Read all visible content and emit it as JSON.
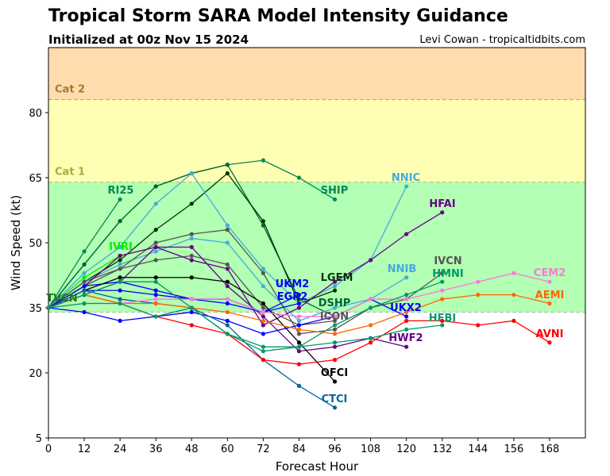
{
  "chart_data": {
    "type": "line",
    "title": "Tropical Storm SARA Model Intensity Guidance",
    "subtitle": "Initialized at 00z Nov 15 2024",
    "credit": "Levi Cowan - tropicaltidbits.com",
    "xlabel": "Forecast Hour",
    "ylabel": "Wind Speed (kt)",
    "xlim": [
      0,
      180
    ],
    "ylim": [
      5,
      95
    ],
    "xticks": [
      0,
      12,
      24,
      36,
      48,
      60,
      72,
      84,
      96,
      108,
      120,
      132,
      144,
      156,
      168
    ],
    "yticks": [
      5,
      20,
      35,
      50,
      65,
      80
    ],
    "grid": false,
    "bands": [
      {
        "label": "",
        "from": 5,
        "to": 34,
        "color": "#ffffff"
      },
      {
        "label": "",
        "from": 34,
        "to": 64,
        "color": "#b3ffb3"
      },
      {
        "label": "Cat 1",
        "from": 64,
        "to": 83,
        "color": "#ffffb3",
        "labelColor": "#aaaa44"
      },
      {
        "label": "Cat 2",
        "from": 83,
        "to": 95,
        "color": "#ffdcae",
        "labelColor": "#aa7733"
      }
    ],
    "x_step": 12,
    "series": [
      {
        "name": "SHIP",
        "color": "#008855",
        "values": [
          35,
          45,
          55,
          63,
          66,
          68,
          69,
          65,
          60
        ]
      },
      {
        "name": "RI25",
        "color": "#008855",
        "values": [
          35,
          48,
          60
        ]
      },
      {
        "name": "DSHP",
        "color": "#006633",
        "values": [
          35,
          45,
          55,
          63,
          66,
          68,
          54,
          37,
          33
        ]
      },
      {
        "name": "LGEM",
        "color": "#003300",
        "values": [
          35,
          41,
          46,
          53,
          59,
          66,
          55,
          36,
          39
        ]
      },
      {
        "name": "IVRI",
        "color": "#00ee00",
        "values": [
          35,
          42,
          47
        ]
      },
      {
        "name": "NNIC",
        "color": "#44aadd",
        "values": [
          35,
          43,
          49,
          59,
          66,
          54,
          44,
          36,
          40,
          46,
          63
        ]
      },
      {
        "name": "NNIB",
        "color": "#44aadd",
        "values": [
          35,
          41,
          45,
          48,
          51,
          50,
          40,
          32,
          35,
          37,
          42
        ]
      },
      {
        "name": "IVCN",
        "color": "#555555",
        "values": [
          35,
          41,
          44,
          50,
          52,
          53,
          43,
          29,
          30,
          35,
          37,
          43
        ]
      },
      {
        "name": "ICON",
        "color": "#555555",
        "values": [
          35,
          40,
          44,
          46,
          47,
          45,
          35,
          31,
          32
        ]
      },
      {
        "name": "HFAI",
        "color": "#660088",
        "values": [
          35,
          40,
          47,
          49,
          46,
          44,
          31,
          35,
          41,
          46,
          52,
          57
        ]
      },
      {
        "name": "HWF2",
        "color": "#660088",
        "values": [
          35,
          38,
          41,
          49,
          49,
          40,
          33,
          25,
          26,
          28,
          26
        ]
      },
      {
        "name": "UKM2",
        "color": "#0000ff",
        "values": [
          35,
          40,
          41,
          39,
          37,
          37,
          34,
          38
        ]
      },
      {
        "name": "EGR2",
        "color": "#0000ff",
        "values": [
          35,
          39,
          39,
          38,
          37,
          36,
          34,
          36
        ]
      },
      {
        "name": "UKX2",
        "color": "#0000ff",
        "values": [
          35,
          34,
          32,
          33,
          34,
          32,
          29,
          31,
          33,
          37,
          33
        ]
      },
      {
        "name": "OFCI",
        "color": "#000000",
        "values": [
          35,
          39,
          42,
          42,
          42,
          41,
          36,
          27,
          18
        ]
      },
      {
        "name": "CTCI",
        "color": "#006699",
        "values": [
          35,
          39,
          37,
          36,
          35,
          31,
          23,
          17,
          12
        ]
      },
      {
        "name": "AVNI",
        "color": "#ff0000",
        "values": [
          35,
          38,
          36,
          33,
          31,
          29,
          23,
          22,
          23,
          27,
          32,
          32,
          31,
          32,
          27
        ]
      },
      {
        "name": "AEMI",
        "color": "#ff6600",
        "values": [
          35,
          38,
          36,
          36,
          35,
          34,
          32,
          30,
          29,
          31,
          34,
          37,
          38,
          38,
          36
        ]
      },
      {
        "name": "CEM2",
        "color": "#ff77dd",
        "values": [
          35,
          36,
          36,
          37,
          37,
          37,
          34,
          33,
          33,
          37,
          37,
          39,
          41,
          43,
          41
        ]
      },
      {
        "name": "HMNI",
        "color": "#009966",
        "values": [
          35,
          38,
          41,
          41,
          35,
          29,
          25,
          26,
          31,
          35,
          38,
          41
        ]
      },
      {
        "name": "HFBI",
        "color": "#009966",
        "values": [
          35,
          36,
          36,
          33,
          35,
          29,
          26,
          26,
          27,
          28,
          30,
          31
        ]
      }
    ],
    "extra_labels": [
      {
        "name": "TVCN",
        "color": "#227722"
      }
    ]
  }
}
